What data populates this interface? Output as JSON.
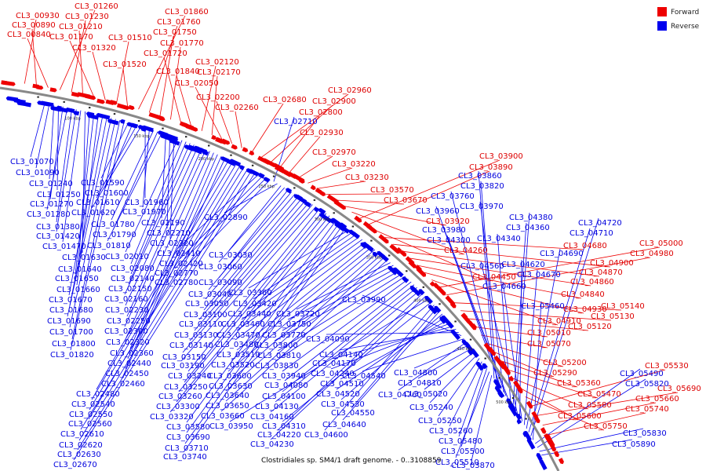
{
  "caption": "Clostridiales sp. SM4/1 draft genome. - 0..3108859",
  "legend": [
    {
      "label": "Forward",
      "color": "#ee0000"
    },
    {
      "label": "Reverse",
      "color": "#0000ee"
    }
  ],
  "colors": {
    "forward": "#ee0000",
    "reverse": "#0000ee",
    "backbone": "#888888"
  },
  "ticks": [
    "100 kbp",
    "150 kbp",
    "200 kbp",
    "250 kbp",
    "300 kbp",
    "350 kbp",
    "400 kbp",
    "450 kbp",
    "500 kbp"
  ],
  "forward_labels": [
    "CL3_00930",
    "CL3_00890",
    "CL3_00840",
    "CL3_01260",
    "CL3_01230",
    "CL3_01210",
    "CL3_01170",
    "CL3_01320",
    "CL3_01510",
    "CL3_01520",
    "CL3_01860",
    "CL3_01760",
    "CL3_01750",
    "CL3_01770",
    "CL3_01720",
    "CL3_01840",
    "CL3_02120",
    "CL3_02170",
    "CL3_02050",
    "CL3_02200",
    "CL3_02260",
    "CL3_02680",
    "CL3_02960",
    "CL3_02900",
    "CL3_02800",
    "CL3_02930",
    "CL3_02970",
    "CL3_03220",
    "CL3_03230",
    "CL3_03570",
    "CL3_03670",
    "CL3_03920",
    "CL3_04260",
    "CL3_03900",
    "CL3_03890",
    "CL3_04450",
    "CL3_04680",
    "CL3_04900",
    "CL3_04870",
    "CL3_04860",
    "CL3_04840",
    "CL3_04930",
    "CL3_04910",
    "CL3_05000",
    "CL3_04980",
    "CL3_05140",
    "CL3_05130",
    "CL3_05120",
    "CL3_05010",
    "CL3_05070",
    "CL3_05200",
    "CL3_05290",
    "CL3_05360",
    "CL3_05470",
    "CL3_05580",
    "CL3_05600",
    "CL3_05750",
    "CL3_05530",
    "CL3_05690",
    "CL3_05660",
    "CL3_05740"
  ],
  "reverse_labels": [
    "CL3_01070",
    "CL3_01090",
    "CL3_01240",
    "CL3_01250",
    "CL3_01270",
    "CL3_01280",
    "CL3_01380",
    "CL3_01420",
    "CL3_01470",
    "CL3_01630",
    "CL3_01640",
    "CL3_01650",
    "CL3_01660",
    "CL3_01670",
    "CL3_01680",
    "CL3_01690",
    "CL3_01700",
    "CL3_01800",
    "CL3_01820",
    "CL3_01590",
    "CL3_01600",
    "CL3_01610",
    "CL3_01620",
    "CL3_01960",
    "CL3_01970",
    "CL3_01780",
    "CL3_01790",
    "CL3_01810",
    "CL3_02190",
    "CL3_02210",
    "CL3_02220",
    "CL3_02010",
    "CL3_02080",
    "CL3_02140",
    "CL3_02150",
    "CL3_02160",
    "CL3_02230",
    "CL3_02250",
    "CL3_02300",
    "CL3_02320",
    "CL3_02360",
    "CL3_02440",
    "CL3_02450",
    "CL3_02460",
    "CL3_02480",
    "CL3_02540",
    "CL3_02550",
    "CL3_02560",
    "CL3_02610",
    "CL3_02620",
    "CL3_02630",
    "CL3_02670",
    "CL3_02410",
    "CL3_02420",
    "CL3_02770",
    "CL3_02780",
    "CL3_02710",
    "CL3_02890",
    "CL3_03030",
    "CL3_03060",
    "CL3_03090",
    "CL3_03040",
    "CL3_03050",
    "CL3_03100",
    "CL3_03110",
    "CL3_03130",
    "CL3_03140",
    "CL3_03150",
    "CL3_03190",
    "CL3_03240",
    "CL3_03250",
    "CL3_03260",
    "CL3_03300",
    "CL3_03320",
    "CL3_03580",
    "CL3_03690",
    "CL3_03710",
    "CL3_03740",
    "CL3_03360",
    "CL3_03420",
    "CL3_03440",
    "CL3_03460",
    "CL3_03470",
    "CL3_03480",
    "CL3_03510",
    "CL3_03520",
    "CL3_03600",
    "CL3_03630",
    "CL3_03640",
    "CL3_03650",
    "CL3_03660",
    "CL3_03720",
    "CL3_03750",
    "CL3_03770",
    "CL3_03800",
    "CL3_03810",
    "CL3_03830",
    "CL3_03940",
    "CL3_04080",
    "CL3_04100",
    "CL3_04130",
    "CL3_04160",
    "CL3_04220",
    "CL3_04230",
    "CL3_03950",
    "CL3_04310",
    "CL3_04600",
    "CL3_04550",
    "CL3_04640",
    "CL3_04530",
    "CL3_04520",
    "CL3_04510",
    "CL3_04240",
    "CL3_04170",
    "CL3_04140",
    "CL3_04090",
    "CL3_03990",
    "CL3_04540",
    "CL3_04760",
    "CL3_04800",
    "CL3_04810",
    "CL3_05020",
    "CL3_05240",
    "CL3_05250",
    "CL3_05260",
    "CL3_05480",
    "CL3_05500",
    "CL3_05510",
    "CL3_03870",
    "CL3_03860",
    "CL3_03820",
    "CL3_03760",
    "CL3_03960",
    "CL3_03970",
    "CL3_03980",
    "CL3_04300",
    "CL3_04340",
    "CL3_04360",
    "CL3_04380",
    "CL3_04560",
    "CL3_04620",
    "CL3_04660",
    "CL3_04670",
    "CL3_04690",
    "CL3_04710",
    "CL3_04720",
    "CL3_05460",
    "CL3_05490",
    "CL3_05820",
    "CL3_05830",
    "CL3_05890"
  ]
}
